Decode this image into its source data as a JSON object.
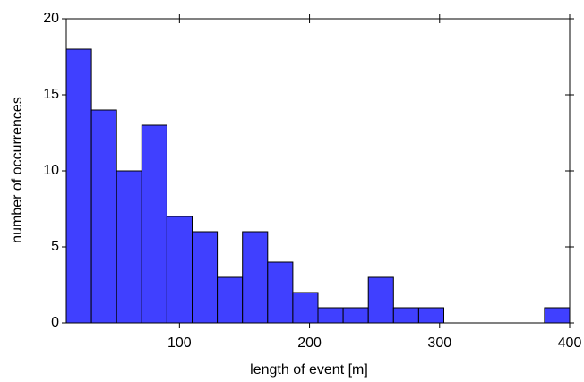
{
  "chart_data": {
    "type": "histogram",
    "xlabel": "length of event [m]",
    "ylabel": "number of occurrences",
    "bins": [
      13,
      32.35,
      51.7,
      71.05,
      90.4,
      109.75,
      129.1,
      148.45,
      167.8,
      187.15,
      206.5,
      225.85,
      245.2,
      264.55,
      283.9,
      303.25,
      322.6,
      341.95,
      361.3,
      380.65,
      400
    ],
    "values": [
      18,
      14,
      10,
      13,
      7,
      6,
      3,
      6,
      4,
      2,
      1,
      1,
      3,
      1,
      1,
      0,
      0,
      0,
      0,
      1
    ],
    "color": "#4040ff",
    "xlim": [
      13,
      400
    ],
    "ylim": [
      0,
      20
    ],
    "xticks": [
      100,
      200,
      300,
      400
    ],
    "yticks": [
      0,
      5,
      10,
      15,
      20
    ],
    "mirror_ticks": true
  }
}
